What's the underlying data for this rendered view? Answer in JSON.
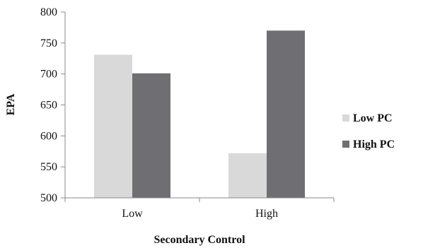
{
  "chart_data": {
    "type": "bar",
    "categories": [
      "Low",
      "High"
    ],
    "series": [
      {
        "name": "Low PC",
        "values": [
          731,
          572
        ],
        "color": "#d9d9d9"
      },
      {
        "name": "High PC",
        "values": [
          701,
          770
        ],
        "color": "#6f6f73"
      }
    ],
    "xlabel": "Secondary Control",
    "ylabel": "EPA",
    "ylim": [
      500,
      800
    ],
    "yticks": [
      500,
      550,
      600,
      650,
      700,
      750,
      800
    ],
    "grid": false,
    "legend_position": "right"
  }
}
